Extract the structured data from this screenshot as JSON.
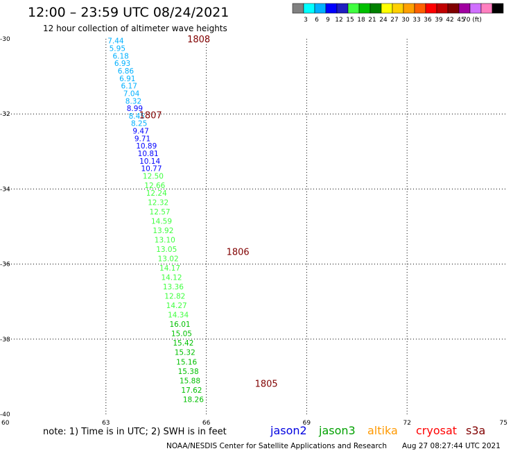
{
  "header": {
    "title": "12:00 – 23:59 UTC 08/24/2021",
    "subtitle": "12 hour collection of altimeter wave heights"
  },
  "colorbar": {
    "colors": [
      "#808080",
      "#00ffff",
      "#00b0ff",
      "#0000ff",
      "#2020c0",
      "#40ff40",
      "#00c000",
      "#008000",
      "#ffff00",
      "#ffd000",
      "#ffa000",
      "#ff6000",
      "#ff0000",
      "#c00000",
      "#800000",
      "#a000a0",
      "#d070ff",
      "#ff80c0",
      "#000000"
    ],
    "labels": [
      "3",
      "6",
      "9",
      "12",
      "15",
      "18",
      "21",
      "24",
      "27",
      "30",
      "33",
      "36",
      "39",
      "42",
      "45",
      "70 (ft)"
    ]
  },
  "footer": {
    "note": "note:  1) Time is in UTC;  2) SWH is in feet",
    "satellites": [
      {
        "name": "jason2",
        "color": "#0000e0"
      },
      {
        "name": "jason3",
        "color": "#00a000"
      },
      {
        "name": "altika",
        "color": "#ff9900"
      },
      {
        "name": "cryosat",
        "color": "#ff0000"
      },
      {
        "name": "s3a",
        "color": "#800000"
      }
    ],
    "credit": "NOAA/NESDIS Center for Satellite Applications and Research",
    "timestamp": "Aug 27 08:27:44 UTC 2021"
  },
  "chart_data": {
    "type": "scatter",
    "title": "12:00 – 23:59 UTC 08/24/2021",
    "subtitle": "12 hour collection of altimeter wave heights",
    "xlabel": "",
    "ylabel": "",
    "xlim": [
      60,
      75
    ],
    "ylim": [
      -40,
      -30
    ],
    "xticks": [
      60,
      63,
      66,
      69,
      72,
      75
    ],
    "yticks": [
      -30,
      -32,
      -34,
      -36,
      -38,
      -40
    ],
    "grid": true,
    "units": "ft",
    "pass_labels": [
      {
        "text": "1808",
        "lon": 62.82,
        "lat": -30.0
      },
      {
        "text": "1807",
        "lon": 61.38,
        "lat": -32.02
      },
      {
        "text": "1806",
        "lon": 63.99,
        "lat": -35.67
      },
      {
        "text": "1805",
        "lon": 64.84,
        "lat": -39.18
      }
    ],
    "points": [
      {
        "lon": 63.05,
        "lat": -30.05,
        "swh": "7.44",
        "color": "#00b0ff"
      },
      {
        "lon": 63.1,
        "lat": -30.25,
        "swh": "5.95",
        "color": "#00b0ff"
      },
      {
        "lon": 63.2,
        "lat": -30.45,
        "swh": "6.18",
        "color": "#00b0ff"
      },
      {
        "lon": 63.25,
        "lat": -30.65,
        "swh": "6.93",
        "color": "#00b0ff"
      },
      {
        "lon": 63.35,
        "lat": -30.85,
        "swh": "6.86",
        "color": "#00b0ff"
      },
      {
        "lon": 63.4,
        "lat": -31.05,
        "swh": "6.91",
        "color": "#00b0ff"
      },
      {
        "lon": 63.45,
        "lat": -31.25,
        "swh": "6.17",
        "color": "#00b0ff"
      },
      {
        "lon": 63.52,
        "lat": -31.45,
        "swh": "7.04",
        "color": "#00b0ff"
      },
      {
        "lon": 63.58,
        "lat": -31.65,
        "swh": "8.32",
        "color": "#00b0ff"
      },
      {
        "lon": 63.62,
        "lat": -31.85,
        "swh": "8.99",
        "color": "#0000ff"
      },
      {
        "lon": 63.68,
        "lat": -32.05,
        "swh": "8.45",
        "color": "#00b0ff"
      },
      {
        "lon": 63.75,
        "lat": -32.25,
        "swh": "8.25",
        "color": "#00b0ff"
      },
      {
        "lon": 63.8,
        "lat": -32.45,
        "swh": "9.47",
        "color": "#0000ff"
      },
      {
        "lon": 63.85,
        "lat": -32.65,
        "swh": "9.71",
        "color": "#0000ff"
      },
      {
        "lon": 63.9,
        "lat": -32.85,
        "swh": "10.89",
        "color": "#0000ff"
      },
      {
        "lon": 63.95,
        "lat": -33.05,
        "swh": "10.81",
        "color": "#0000ff"
      },
      {
        "lon": 64.0,
        "lat": -33.25,
        "swh": "10.14",
        "color": "#0000ff"
      },
      {
        "lon": 64.05,
        "lat": -33.45,
        "swh": "10.77",
        "color": "#0000ff"
      },
      {
        "lon": 64.1,
        "lat": -33.65,
        "swh": "12.50",
        "color": "#40ff40"
      },
      {
        "lon": 64.15,
        "lat": -33.9,
        "swh": "12.66",
        "color": "#40ff40"
      },
      {
        "lon": 64.2,
        "lat": -34.1,
        "swh": "12.24",
        "color": "#40ff40"
      },
      {
        "lon": 64.25,
        "lat": -34.35,
        "swh": "12.32",
        "color": "#40ff40"
      },
      {
        "lon": 64.3,
        "lat": -34.6,
        "swh": "12.57",
        "color": "#40ff40"
      },
      {
        "lon": 64.35,
        "lat": -34.85,
        "swh": "14.59",
        "color": "#40ff40"
      },
      {
        "lon": 64.4,
        "lat": -35.1,
        "swh": "13.92",
        "color": "#40ff40"
      },
      {
        "lon": 64.45,
        "lat": -35.35,
        "swh": "13.10",
        "color": "#40ff40"
      },
      {
        "lon": 64.5,
        "lat": -35.6,
        "swh": "13.05",
        "color": "#40ff40"
      },
      {
        "lon": 64.55,
        "lat": -35.85,
        "swh": "13.02",
        "color": "#40ff40"
      },
      {
        "lon": 64.6,
        "lat": -36.1,
        "swh": "14.17",
        "color": "#40ff40"
      },
      {
        "lon": 64.65,
        "lat": -36.35,
        "swh": "14.12",
        "color": "#40ff40"
      },
      {
        "lon": 64.7,
        "lat": -36.6,
        "swh": "13.36",
        "color": "#40ff40"
      },
      {
        "lon": 64.75,
        "lat": -36.85,
        "swh": "12.82",
        "color": "#40ff40"
      },
      {
        "lon": 64.8,
        "lat": -37.1,
        "swh": "14.27",
        "color": "#40ff40"
      },
      {
        "lon": 64.85,
        "lat": -37.35,
        "swh": "14.34",
        "color": "#40ff40"
      },
      {
        "lon": 64.9,
        "lat": -37.6,
        "swh": "16.01",
        "color": "#00c000"
      },
      {
        "lon": 64.95,
        "lat": -37.85,
        "swh": "15.05",
        "color": "#00c000"
      },
      {
        "lon": 65.0,
        "lat": -38.1,
        "swh": "15.42",
        "color": "#00c000"
      },
      {
        "lon": 65.05,
        "lat": -38.35,
        "swh": "15.32",
        "color": "#00c000"
      },
      {
        "lon": 65.1,
        "lat": -38.6,
        "swh": "15.16",
        "color": "#00c000"
      },
      {
        "lon": 65.15,
        "lat": -38.85,
        "swh": "15.38",
        "color": "#00c000"
      },
      {
        "lon": 65.2,
        "lat": -39.1,
        "swh": "15.88",
        "color": "#00c000"
      },
      {
        "lon": 65.25,
        "lat": -39.35,
        "swh": "17.62",
        "color": "#00c000"
      },
      {
        "lon": 65.3,
        "lat": -39.6,
        "swh": "18.26",
        "color": "#00c000"
      }
    ]
  }
}
